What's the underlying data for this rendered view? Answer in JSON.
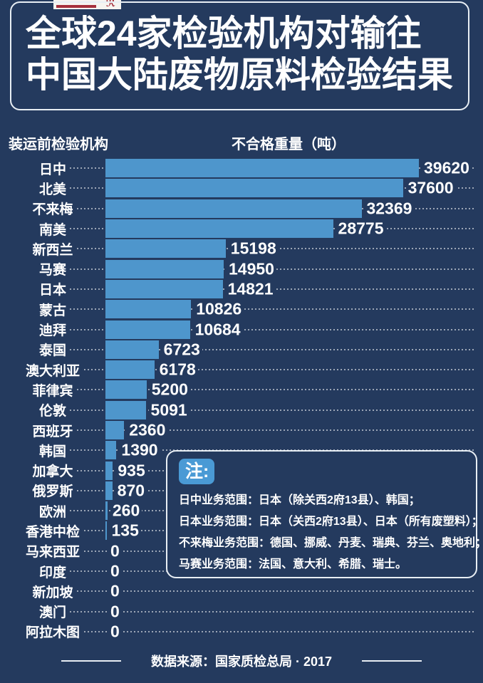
{
  "logo": {
    "shape": "white-box-red-seal",
    "red": "#A6303C"
  },
  "title": {
    "line1": "全球24家检验机构对输往",
    "line2": "中国大陆废物原料检验结果"
  },
  "columns": {
    "left": "装运前检验机构",
    "right": "不合格重量（吨）"
  },
  "chart_data": {
    "type": "bar",
    "orientation": "horizontal",
    "title": "全球24家检验机构对输往中国大陆废物原料检验结果",
    "xlabel": "不合格重量（吨）",
    "ylabel": "装运前检验机构",
    "xlim": [
      0,
      39620
    ],
    "grid": false,
    "bar_color": "#4E96CC",
    "categories": [
      "日中",
      "北美",
      "不来梅",
      "南美",
      "新西兰",
      "马赛",
      "日本",
      "蒙古",
      "迪拜",
      "泰国",
      "澳大利亚",
      "菲律宾",
      "伦敦",
      "西班牙",
      "韩国",
      "加拿大",
      "俄罗斯",
      "欧洲",
      "香港中检",
      "马来西亚",
      "印度",
      "新加坡",
      "澳门",
      "阿拉木图"
    ],
    "values": [
      39620,
      37600,
      32369,
      28775,
      15198,
      14950,
      14821,
      10826,
      10684,
      6723,
      6178,
      5200,
      5091,
      2360,
      1390,
      935,
      870,
      260,
      135,
      0,
      0,
      0,
      0,
      0
    ]
  },
  "note": {
    "badge": "注:",
    "lines": [
      "日中业务范围：日本（除关西2府13县）、韩国；",
      "日本业务范围：日本（关西2府13县）、日本（所有废塑料）；",
      "不来梅业务范围：德国、挪威、丹麦、瑞典、芬兰、奥地利；",
      "马赛业务范围：法国、意大利、希腊、瑞士。"
    ]
  },
  "footer": {
    "source": "数据来源：国家质检总局 · 2017"
  },
  "colors": {
    "background": "#243A5E",
    "bar": "#4E96CC",
    "border": "#E8EEF4",
    "badge": "#4A9AD5",
    "text": "#FFFFFF"
  }
}
